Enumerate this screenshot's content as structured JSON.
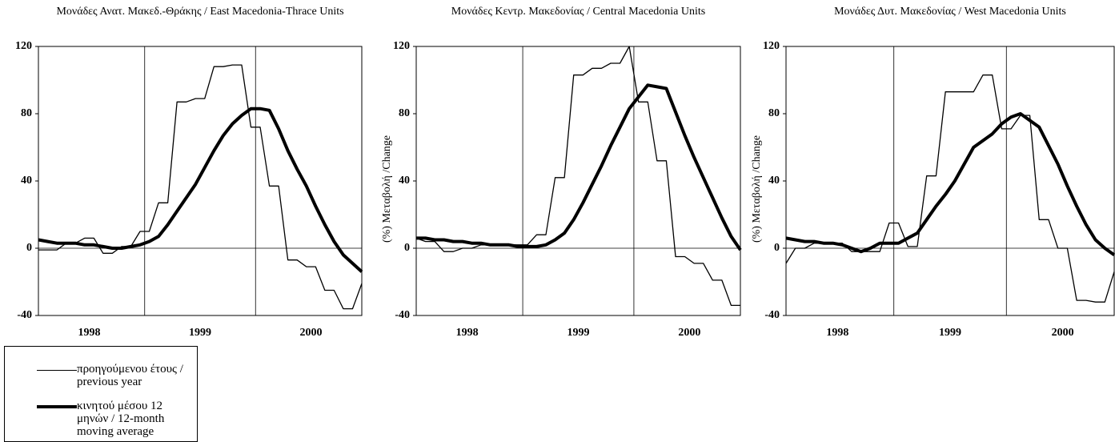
{
  "chart_data": [
    {
      "type": "line",
      "title": "Μονάδες Ανατ. Μακεδ.-Θράκης / East Macedonia-Thrace Units",
      "categories": [
        null,
        null,
        null,
        null,
        null,
        "1998",
        null,
        null,
        null,
        null,
        null,
        null,
        null,
        null,
        null,
        null,
        null,
        "1999",
        null,
        null,
        null,
        null,
        null,
        null,
        null,
        null,
        null,
        null,
        null,
        "2000",
        null,
        null,
        null,
        null,
        null,
        null
      ],
      "ylim": [
        -40,
        120
      ],
      "yticks": [
        -40,
        0,
        40,
        80,
        120
      ],
      "series": [
        {
          "name": "προηγούμενου έτους / previous year",
          "color": "#000000",
          "width": 1.3,
          "values": [
            -1,
            -1,
            -1,
            3,
            3,
            6,
            6,
            -3,
            -3,
            1,
            1,
            10,
            10,
            27,
            27,
            87,
            87,
            89,
            89,
            108,
            108,
            109,
            109,
            72,
            72,
            37,
            37,
            -7,
            -7,
            -11,
            -11,
            -25,
            -25,
            -36,
            -36,
            -21
          ]
        },
        {
          "name": "κινητού μέσου 12 μηνών / 12-month moving average",
          "color": "#000000",
          "width": 4,
          "values": [
            5,
            4,
            3,
            3,
            3,
            2,
            2,
            1,
            0,
            0,
            1,
            2,
            4,
            7,
            14,
            22,
            30,
            38,
            48,
            58,
            67,
            74,
            79,
            83,
            83,
            82,
            71,
            58,
            47,
            37,
            25,
            14,
            4,
            -4,
            -9,
            -14
          ]
        }
      ]
    },
    {
      "type": "line",
      "title": "Μονάδες Κεντρ. Μακεδονίας / Central Macedonia Units",
      "ylabel": "(%) Μεταβολή /Change",
      "categories": [
        null,
        null,
        null,
        null,
        null,
        "1998",
        null,
        null,
        null,
        null,
        null,
        null,
        null,
        null,
        null,
        null,
        null,
        "1999",
        null,
        null,
        null,
        null,
        null,
        null,
        null,
        null,
        null,
        null,
        null,
        "2000",
        null,
        null,
        null,
        null,
        null,
        null
      ],
      "ylim": [
        -40,
        120
      ],
      "yticks": [
        -40,
        0,
        40,
        80,
        120
      ],
      "series": [
        {
          "color": "#000000",
          "width": 1.3,
          "values": [
            6,
            4,
            4,
            -2,
            -2,
            0,
            0,
            2,
            2,
            2,
            2,
            2,
            2,
            8,
            8,
            42,
            42,
            103,
            103,
            107,
            107,
            110,
            110,
            120,
            87,
            87,
            52,
            52,
            -5,
            -5,
            -9,
            -9,
            -19,
            -19,
            -34,
            -34
          ]
        },
        {
          "color": "#000000",
          "width": 4,
          "values": [
            6,
            6,
            5,
            5,
            4,
            4,
            3,
            3,
            2,
            2,
            2,
            1,
            1,
            1,
            2,
            5,
            9,
            17,
            27,
            38,
            49,
            61,
            72,
            83,
            90,
            97,
            96,
            95,
            81,
            67,
            54,
            42,
            30,
            18,
            7,
            -1
          ]
        }
      ]
    },
    {
      "type": "line",
      "title": "Μονάδες Δυτ. Μακεδονίας / West Macedonia Units",
      "ylabel": "(%) Μεταβολή /Change",
      "categories": [
        null,
        null,
        null,
        null,
        null,
        "1998",
        null,
        null,
        null,
        null,
        null,
        null,
        null,
        null,
        null,
        null,
        null,
        "1999",
        null,
        null,
        null,
        null,
        null,
        null,
        null,
        null,
        null,
        null,
        null,
        "2000",
        null,
        null,
        null,
        null,
        null,
        null
      ],
      "ylim": [
        -40,
        120
      ],
      "yticks": [
        -40,
        0,
        40,
        80,
        120
      ],
      "series": [
        {
          "color": "#000000",
          "width": 1.3,
          "values": [
            -9,
            0,
            0,
            3,
            3,
            3,
            3,
            -2,
            -2,
            -2,
            -2,
            15,
            15,
            1,
            1,
            43,
            43,
            93,
            93,
            93,
            93,
            103,
            103,
            71,
            71,
            79,
            79,
            17,
            17,
            0,
            0,
            -31,
            -31,
            -32,
            -32,
            -14
          ]
        },
        {
          "color": "#000000",
          "width": 4,
          "values": [
            6,
            5,
            4,
            4,
            3,
            3,
            2,
            0,
            -2,
            0,
            3,
            3,
            3,
            6,
            9,
            17,
            25,
            32,
            40,
            50,
            60,
            64,
            68,
            74,
            78,
            80,
            76,
            72,
            61,
            50,
            37,
            25,
            14,
            5,
            0,
            -4
          ]
        }
      ]
    }
  ]
}
